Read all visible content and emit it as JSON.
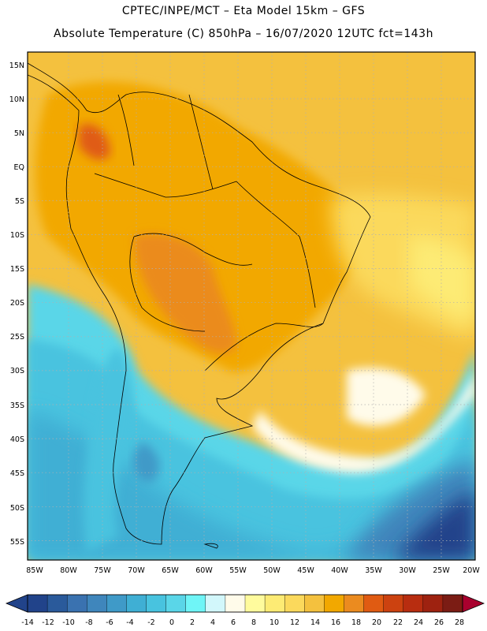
{
  "header": {
    "line1": "CPTEC/INPE/MCT –   Eta Model 15km – GFS",
    "line2": "Absolute Temperature (C) 850hPa – 16/07/2020 12UTC fct=143h"
  },
  "axes": {
    "lat_labels": [
      "15N",
      "10N",
      "5N",
      "EQ",
      "5S",
      "10S",
      "15S",
      "20S",
      "25S",
      "30S",
      "35S",
      "40S",
      "45S",
      "50S",
      "55S"
    ],
    "lon_labels": [
      "85W",
      "80W",
      "75W",
      "70W",
      "65W",
      "60W",
      "55W",
      "50W",
      "45W",
      "40W",
      "35W",
      "30W",
      "25W",
      "20W"
    ]
  },
  "colorbar": {
    "tick_labels": [
      "-14",
      "-12",
      "-10",
      "-8",
      "-6",
      "-4",
      "-2",
      "0",
      "2",
      "4",
      "6",
      "8",
      "10",
      "12",
      "14",
      "16",
      "18",
      "20",
      "22",
      "24",
      "26",
      "28"
    ],
    "colors": [
      "#21438a",
      "#2a5a9b",
      "#3a72b0",
      "#3f86bc",
      "#3f9ac8",
      "#3fafd4",
      "#48c3df",
      "#5ad6e8",
      "#6ff5f7",
      "#d2f7fb",
      "#fffbea",
      "#fffb9d",
      "#fdeb74",
      "#fbd95c",
      "#f4c13e",
      "#f2a800",
      "#eb8b1f",
      "#e05b12",
      "#cc4210",
      "#b82d10",
      "#9e2210",
      "#7b1c14",
      "#a9002e"
    ]
  },
  "colors": {
    "ocean_deep": "#1f3f8f",
    "ocean_mid": "#3f9ac8",
    "ocean_light": "#5ad6e8",
    "warm_land": "#f2a800",
    "hot_land": "#eb8b1f",
    "light_yellow": "#fdeb74",
    "cream": "#fffbea"
  }
}
